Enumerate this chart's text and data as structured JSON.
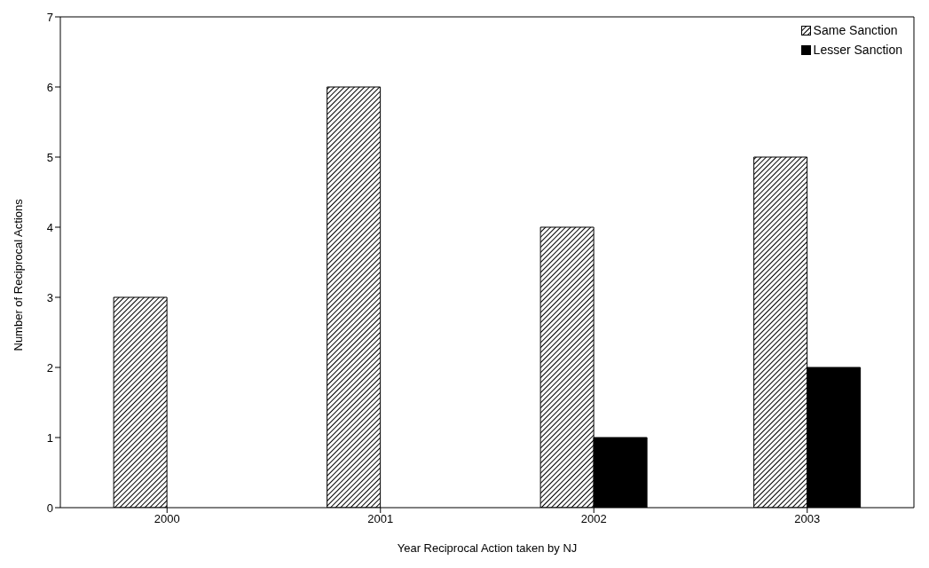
{
  "chart_data": {
    "type": "bar",
    "xlabel": "Year Reciprocal Action taken by NJ",
    "ylabel": "Number of Reciprocal Actions",
    "categories": [
      "2000",
      "2001",
      "2002",
      "2003"
    ],
    "series": [
      {
        "name": "Same Sanction",
        "color": "#000000",
        "values": [
          3,
          6,
          4,
          5
        ]
      },
      {
        "name": "Lesser Sanction",
        "color": "#000000",
        "values": [
          0,
          0,
          1,
          2
        ]
      }
    ],
    "ylim": [
      0,
      7
    ],
    "yticks": [
      0,
      1,
      2,
      3,
      4,
      5,
      6,
      7
    ],
    "legend": "top right"
  }
}
